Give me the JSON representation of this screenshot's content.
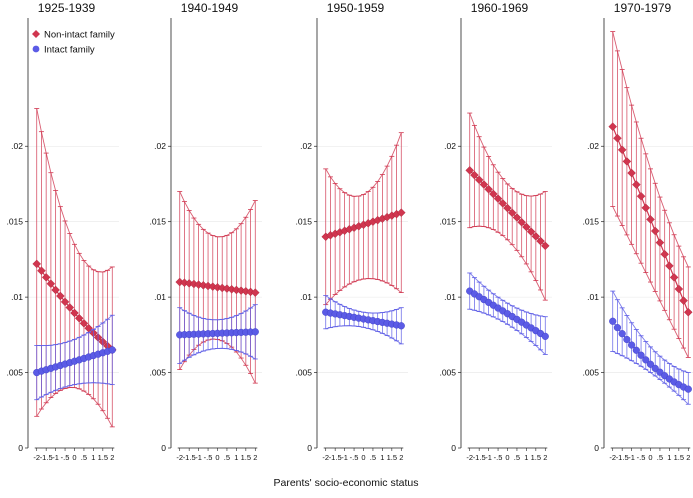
{
  "chart_data": {
    "type": "line",
    "xlabel": "Parents' socio-economic status",
    "ylim": [
      0,
      0.0285
    ],
    "yticks": [
      0,
      0.005,
      0.01,
      0.015,
      0.02
    ],
    "ytick_labels": [
      "0",
      ".005",
      ".01",
      ".015",
      ".02"
    ],
    "x": [
      -2,
      -1.75,
      -1.5,
      -1.25,
      -1,
      -0.75,
      -0.5,
      -0.25,
      0,
      0.25,
      0.5,
      0.75,
      1,
      1.25,
      1.5,
      1.75,
      2
    ],
    "xticks": [
      -2,
      -1.5,
      -1,
      -0.5,
      0,
      0.5,
      1,
      1.5,
      2
    ],
    "xtick_labels": [
      "-2",
      "-1.5",
      "-1",
      "-.5",
      "0",
      ".5",
      "1",
      "1.5",
      "2"
    ],
    "legend": [
      {
        "label": "Non-intact family",
        "color": "#d0364f",
        "marker": "diamond"
      },
      {
        "label": "Intact family",
        "color": "#5b5be6",
        "marker": "circle"
      }
    ],
    "panels": [
      {
        "title": "1925-1939",
        "series": [
          {
            "name": "Non-intact family",
            "start": 0.0122,
            "end": 0.0065,
            "curve": -0.0004,
            "ci_low_start": 0.0021,
            "ci_low_mid": 0.004,
            "ci_low_end": 0.0014,
            "ci_high_start": 0.0225,
            "ci_high_mid": 0.0135,
            "ci_high_end": 0.012
          },
          {
            "name": "Intact family",
            "start": 0.005,
            "end": 0.0065,
            "curve": 0.0,
            "ci_low_start": 0.0032,
            "ci_low_mid": 0.0042,
            "ci_low_end": 0.0042,
            "ci_high_start": 0.0068,
            "ci_high_mid": 0.0072,
            "ci_high_end": 0.0088
          }
        ]
      },
      {
        "title": "1940-1949",
        "series": [
          {
            "name": "Non-intact family",
            "start": 0.011,
            "end": 0.0103,
            "curve": 0.0,
            "ci_low_start": 0.0052,
            "ci_low_mid": 0.0072,
            "ci_low_end": 0.0043,
            "ci_high_start": 0.017,
            "ci_high_mid": 0.014,
            "ci_high_end": 0.0164
          },
          {
            "name": "Intact family",
            "start": 0.0075,
            "end": 0.0077,
            "curve": 0.0,
            "ci_low_start": 0.0056,
            "ci_low_mid": 0.0066,
            "ci_low_end": 0.0059,
            "ci_high_start": 0.0093,
            "ci_high_mid": 0.0085,
            "ci_high_end": 0.0095
          }
        ]
      },
      {
        "title": "1950-1959",
        "series": [
          {
            "name": "Non-intact family",
            "start": 0.014,
            "end": 0.0156,
            "curve": 0.0,
            "ci_low_start": 0.0095,
            "ci_low_mid": 0.0112,
            "ci_low_end": 0.0103,
            "ci_high_start": 0.0185,
            "ci_high_mid": 0.0168,
            "ci_high_end": 0.0209
          },
          {
            "name": "Intact family",
            "start": 0.009,
            "end": 0.0081,
            "curve": 0.0,
            "ci_low_start": 0.0079,
            "ci_low_mid": 0.008,
            "ci_low_end": 0.0069,
            "ci_high_start": 0.0101,
            "ci_high_mid": 0.009,
            "ci_high_end": 0.0093
          }
        ]
      },
      {
        "title": "1960-1969",
        "series": [
          {
            "name": "Non-intact family",
            "start": 0.0184,
            "end": 0.0134,
            "curve": 0.0,
            "ci_low_start": 0.0146,
            "ci_low_mid": 0.0138,
            "ci_low_end": 0.0098,
            "ci_high_start": 0.0222,
            "ci_high_mid": 0.0175,
            "ci_high_end": 0.017
          },
          {
            "name": "Intact family",
            "start": 0.0104,
            "end": 0.0074,
            "curve": 0.0,
            "ci_low_start": 0.0092,
            "ci_low_mid": 0.0082,
            "ci_low_end": 0.0062,
            "ci_high_start": 0.0116,
            "ci_high_mid": 0.0096,
            "ci_high_end": 0.0087
          }
        ]
      },
      {
        "title": "1970-1979",
        "series": [
          {
            "name": "Non-intact family",
            "start": 0.0213,
            "end": 0.009,
            "curve": 0.0,
            "ci_low_start": 0.016,
            "ci_low_mid": 0.011,
            "ci_low_end": 0.006,
            "ci_high_start": 0.0276,
            "ci_high_mid": 0.0185,
            "ci_high_end": 0.012
          },
          {
            "name": "Intact family",
            "start": 0.0084,
            "end": 0.0039,
            "curve": -0.0006,
            "ci_low_start": 0.0064,
            "ci_low_mid": 0.005,
            "ci_low_end": 0.0029,
            "ci_high_start": 0.0104,
            "ci_high_mid": 0.0067,
            "ci_high_end": 0.005
          }
        ]
      }
    ]
  }
}
